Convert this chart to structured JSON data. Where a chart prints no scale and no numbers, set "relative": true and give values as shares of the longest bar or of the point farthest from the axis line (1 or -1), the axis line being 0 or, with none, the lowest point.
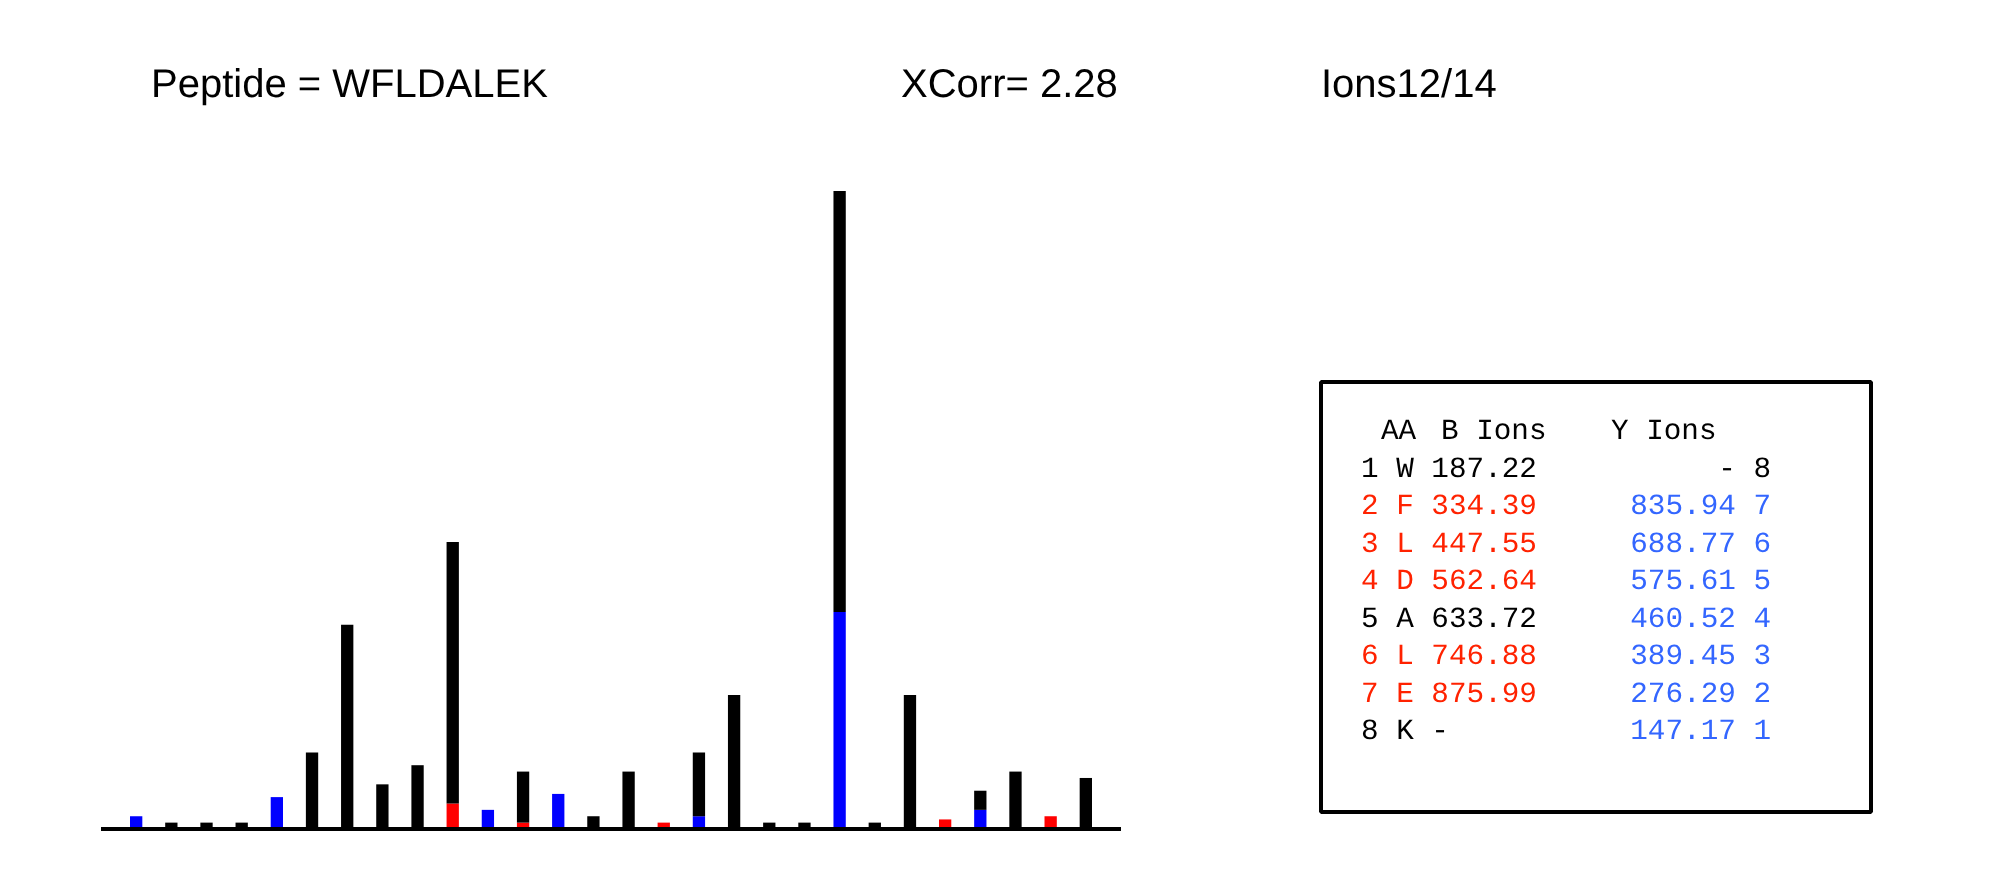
{
  "chart_data": [
    {
      "type": "bar",
      "title": "Peptide = WFLDALEK",
      "annotations": [
        "XCorr= 2.28",
        "Ions12/14"
      ],
      "relative": true,
      "stacked": true,
      "grid": false,
      "categories": [
        null,
        null,
        null,
        null,
        null,
        null,
        null,
        null,
        null,
        null,
        null,
        null,
        null,
        null,
        null,
        null,
        null,
        null,
        null,
        null,
        null,
        null,
        null,
        null,
        null,
        null,
        null,
        null
      ],
      "series": [
        {
          "colors": [
            "#0000ff",
            "#000000",
            "#000000",
            "#000000",
            "#0000ff",
            "#000000",
            "#000000",
            "#000000",
            "#000000",
            "#ff0000",
            "#0000ff",
            "#ff0000",
            "#0000ff",
            "#000000",
            "#000000",
            "#ff0000",
            "#0000ff",
            "#000000",
            "#000000",
            "#000000",
            "#0000ff",
            "#000000",
            "#000000",
            "#ff0000",
            "#0000ff",
            "#000000",
            "#ff0000",
            "#000000"
          ],
          "values": [
            0.02,
            0,
            0,
            0,
            0.05,
            0,
            0,
            0,
            0,
            0.04,
            0.03,
            0.01,
            0.055,
            0,
            0,
            0.01,
            0.02,
            0,
            0,
            0,
            0.34,
            0,
            0,
            0.015,
            0.03,
            0,
            0.02,
            0
          ]
        },
        {
          "color": "#000000",
          "values": [
            0,
            0.01,
            0.01,
            0.01,
            0,
            0.12,
            0.32,
            0.07,
            0.1,
            0.41,
            0,
            0.08,
            0,
            0.02,
            0.09,
            0,
            0.1,
            0.21,
            0.01,
            0.01,
            0.66,
            0.01,
            0.21,
            0,
            0.03,
            0.09,
            0,
            0.08
          ]
        }
      ]
    },
    {
      "type": "other",
      "annotations": [
        "AA",
        "B Ions",
        "Y Ions",
        "1 W 187.22",
        "- 8",
        "2 F 334.39",
        "835.94 7",
        "3 L 447.55",
        "688.77 6",
        "4 D 562.64",
        "575.61 5",
        "5 A 633.72",
        "460.52 4",
        "6 L 746.88",
        "389.45 3",
        "7 E 875.99",
        "276.29 2",
        "8 K  -",
        "147.17 1"
      ],
      "colors": [
        "#000000",
        "#000000",
        "#000000",
        "#000000",
        "#000000",
        "#ff2200",
        "#3366ff",
        "#ff2200",
        "#3366ff",
        "#ff2200",
        "#3366ff",
        "#000000",
        "#3366ff",
        "#ff2200",
        "#3366ff",
        "#ff2200",
        "#3366ff",
        "#000000",
        "#3366ff"
      ]
    }
  ]
}
